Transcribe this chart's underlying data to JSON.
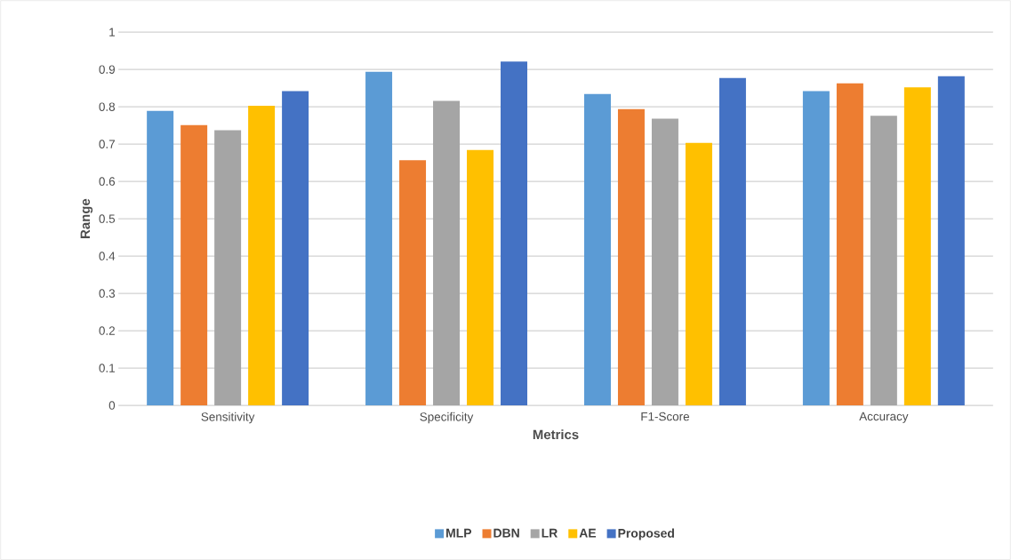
{
  "chart_data": {
    "type": "bar",
    "xlabel": "Metrics",
    "ylabel": "Range",
    "categories": [
      "Sensitivity",
      "Specificity",
      "F1-Score",
      "Accuracy"
    ],
    "series": [
      {
        "name": "MLP",
        "color": "#5b9bd5",
        "values": [
          0.789,
          0.894,
          0.834,
          0.842
        ]
      },
      {
        "name": "DBN",
        "color": "#ed7d31",
        "values": [
          0.751,
          0.657,
          0.794,
          0.863
        ]
      },
      {
        "name": "LR",
        "color": "#a5a5a5",
        "values": [
          0.737,
          0.816,
          0.768,
          0.776
        ]
      },
      {
        "name": "AE",
        "color": "#ffc000",
        "values": [
          0.803,
          0.684,
          0.703,
          0.852
        ]
      },
      {
        "name": "Proposed",
        "color": "#4472c4",
        "values": [
          0.842,
          0.921,
          0.877,
          0.882
        ]
      }
    ],
    "ylim": [
      0,
      1
    ],
    "yticks": [
      0,
      0.1,
      0.2,
      0.3,
      0.4,
      0.5,
      0.6,
      0.7,
      0.8,
      0.9,
      1
    ],
    "grid": "y",
    "legend": "bottom"
  }
}
